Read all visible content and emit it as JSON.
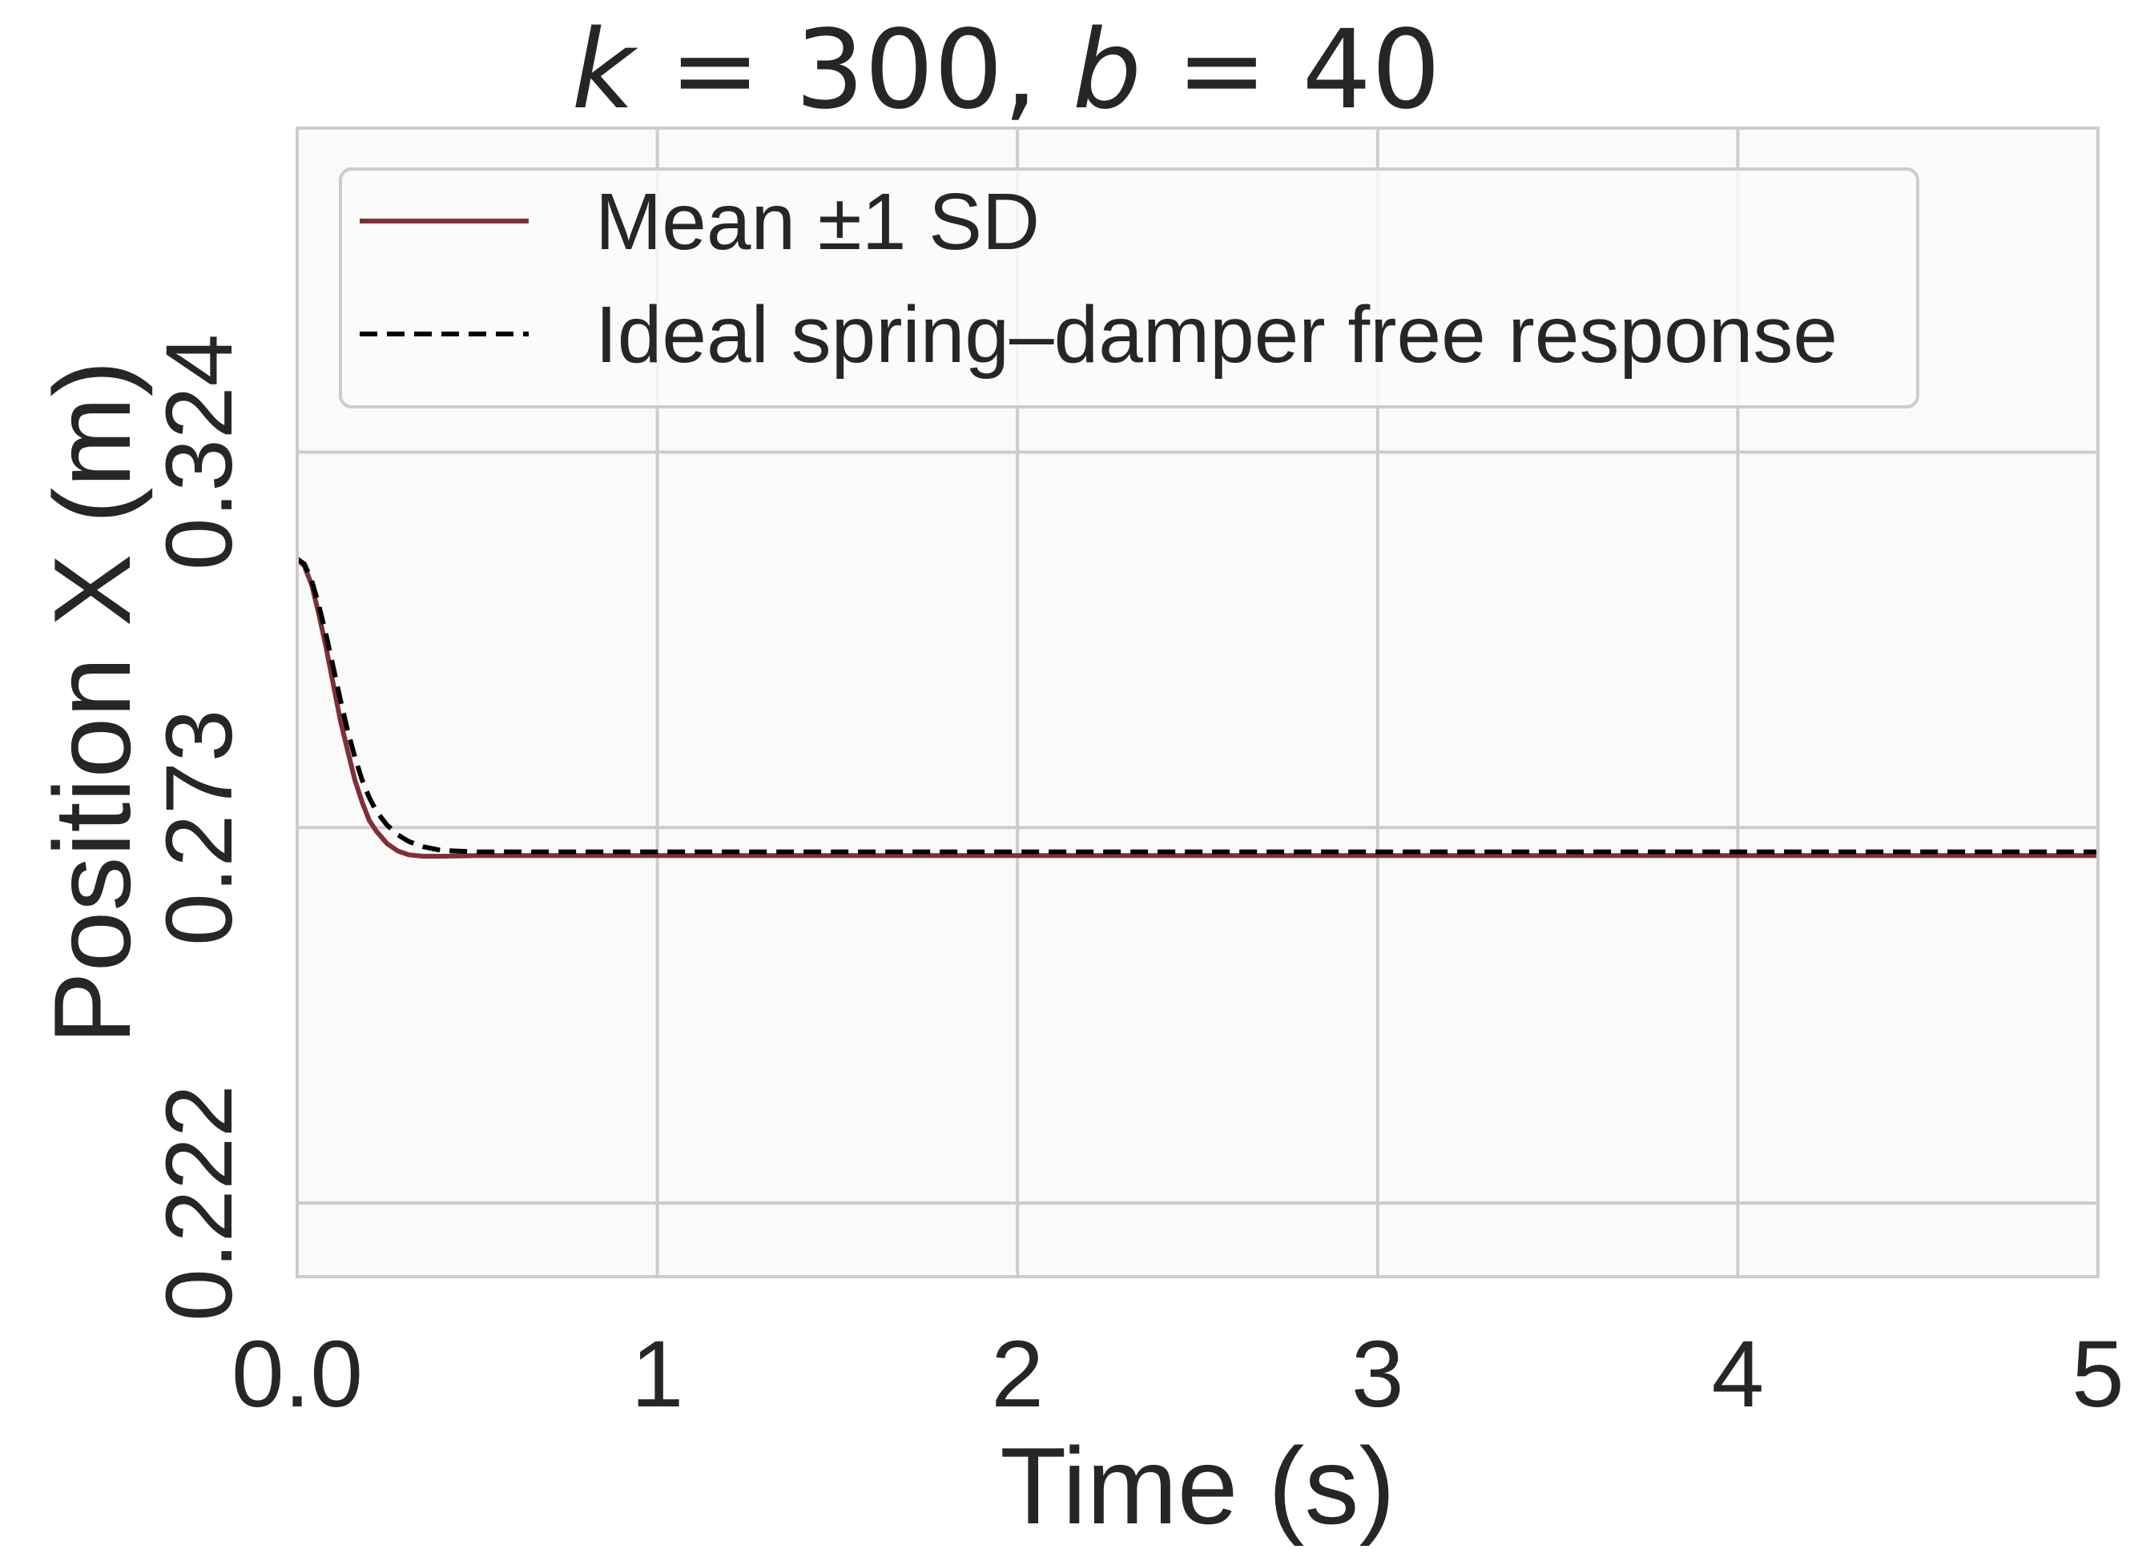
{
  "chart_data": {
    "type": "line",
    "title_parts": [
      "k",
      " = 300, ",
      "b",
      " = 40"
    ],
    "xlabel": "Time (s)",
    "ylabel": "Position X (m)",
    "xlim": [
      0,
      5
    ],
    "ylim": [
      0.212,
      0.368
    ],
    "x_ticks": [
      0,
      1,
      2,
      3,
      4,
      5
    ],
    "x_tick_labels": [
      "0.0",
      "1",
      "2",
      "3",
      "4",
      "5"
    ],
    "y_ticks": [
      0.222,
      0.273,
      0.324
    ],
    "y_tick_labels": [
      "0.222",
      "0.273",
      "0.324"
    ],
    "grid": true,
    "legend_position": "upper-left",
    "colors": {
      "mean": "#7f2f36",
      "ideal": "#000000",
      "grid": "#cccccc",
      "frame": "#cccccc",
      "plot_bg": "#fafafa",
      "text": "#262626"
    },
    "series": [
      {
        "name": "Mean ±1 SD",
        "style": "solid",
        "x": [
          0,
          0.02,
          0.04,
          0.06,
          0.08,
          0.1,
          0.12,
          0.14,
          0.16,
          0.18,
          0.2,
          0.22,
          0.25,
          0.28,
          0.31,
          0.35,
          0.4,
          0.5,
          0.6,
          0.8,
          1.0,
          1.5,
          2.0,
          3.0,
          4.0,
          5.0
        ],
        "y": [
          0.3095,
          0.3085,
          0.306,
          0.302,
          0.2975,
          0.2925,
          0.2875,
          0.2835,
          0.2795,
          0.2765,
          0.274,
          0.2725,
          0.2708,
          0.2698,
          0.2693,
          0.2691,
          0.2691,
          0.2692,
          0.2692,
          0.2692,
          0.2692,
          0.2692,
          0.2692,
          0.2692,
          0.2692,
          0.2692
        ]
      },
      {
        "name": "Ideal spring–damper free response",
        "style": "dashed",
        "x": [
          0,
          0.02,
          0.04,
          0.06,
          0.08,
          0.1,
          0.12,
          0.14,
          0.16,
          0.18,
          0.2,
          0.22,
          0.25,
          0.28,
          0.31,
          0.35,
          0.4,
          0.5,
          0.6,
          0.8,
          1.0,
          1.5,
          2.0,
          3.0,
          4.0,
          5.0
        ],
        "y": [
          0.3095,
          0.3088,
          0.3066,
          0.3032,
          0.2992,
          0.2948,
          0.2903,
          0.2862,
          0.2826,
          0.2795,
          0.2771,
          0.2752,
          0.2733,
          0.272,
          0.2711,
          0.2704,
          0.2699,
          0.2697,
          0.2697,
          0.2697,
          0.2697,
          0.2697,
          0.2697,
          0.2697,
          0.2697,
          0.2697
        ]
      }
    ]
  }
}
